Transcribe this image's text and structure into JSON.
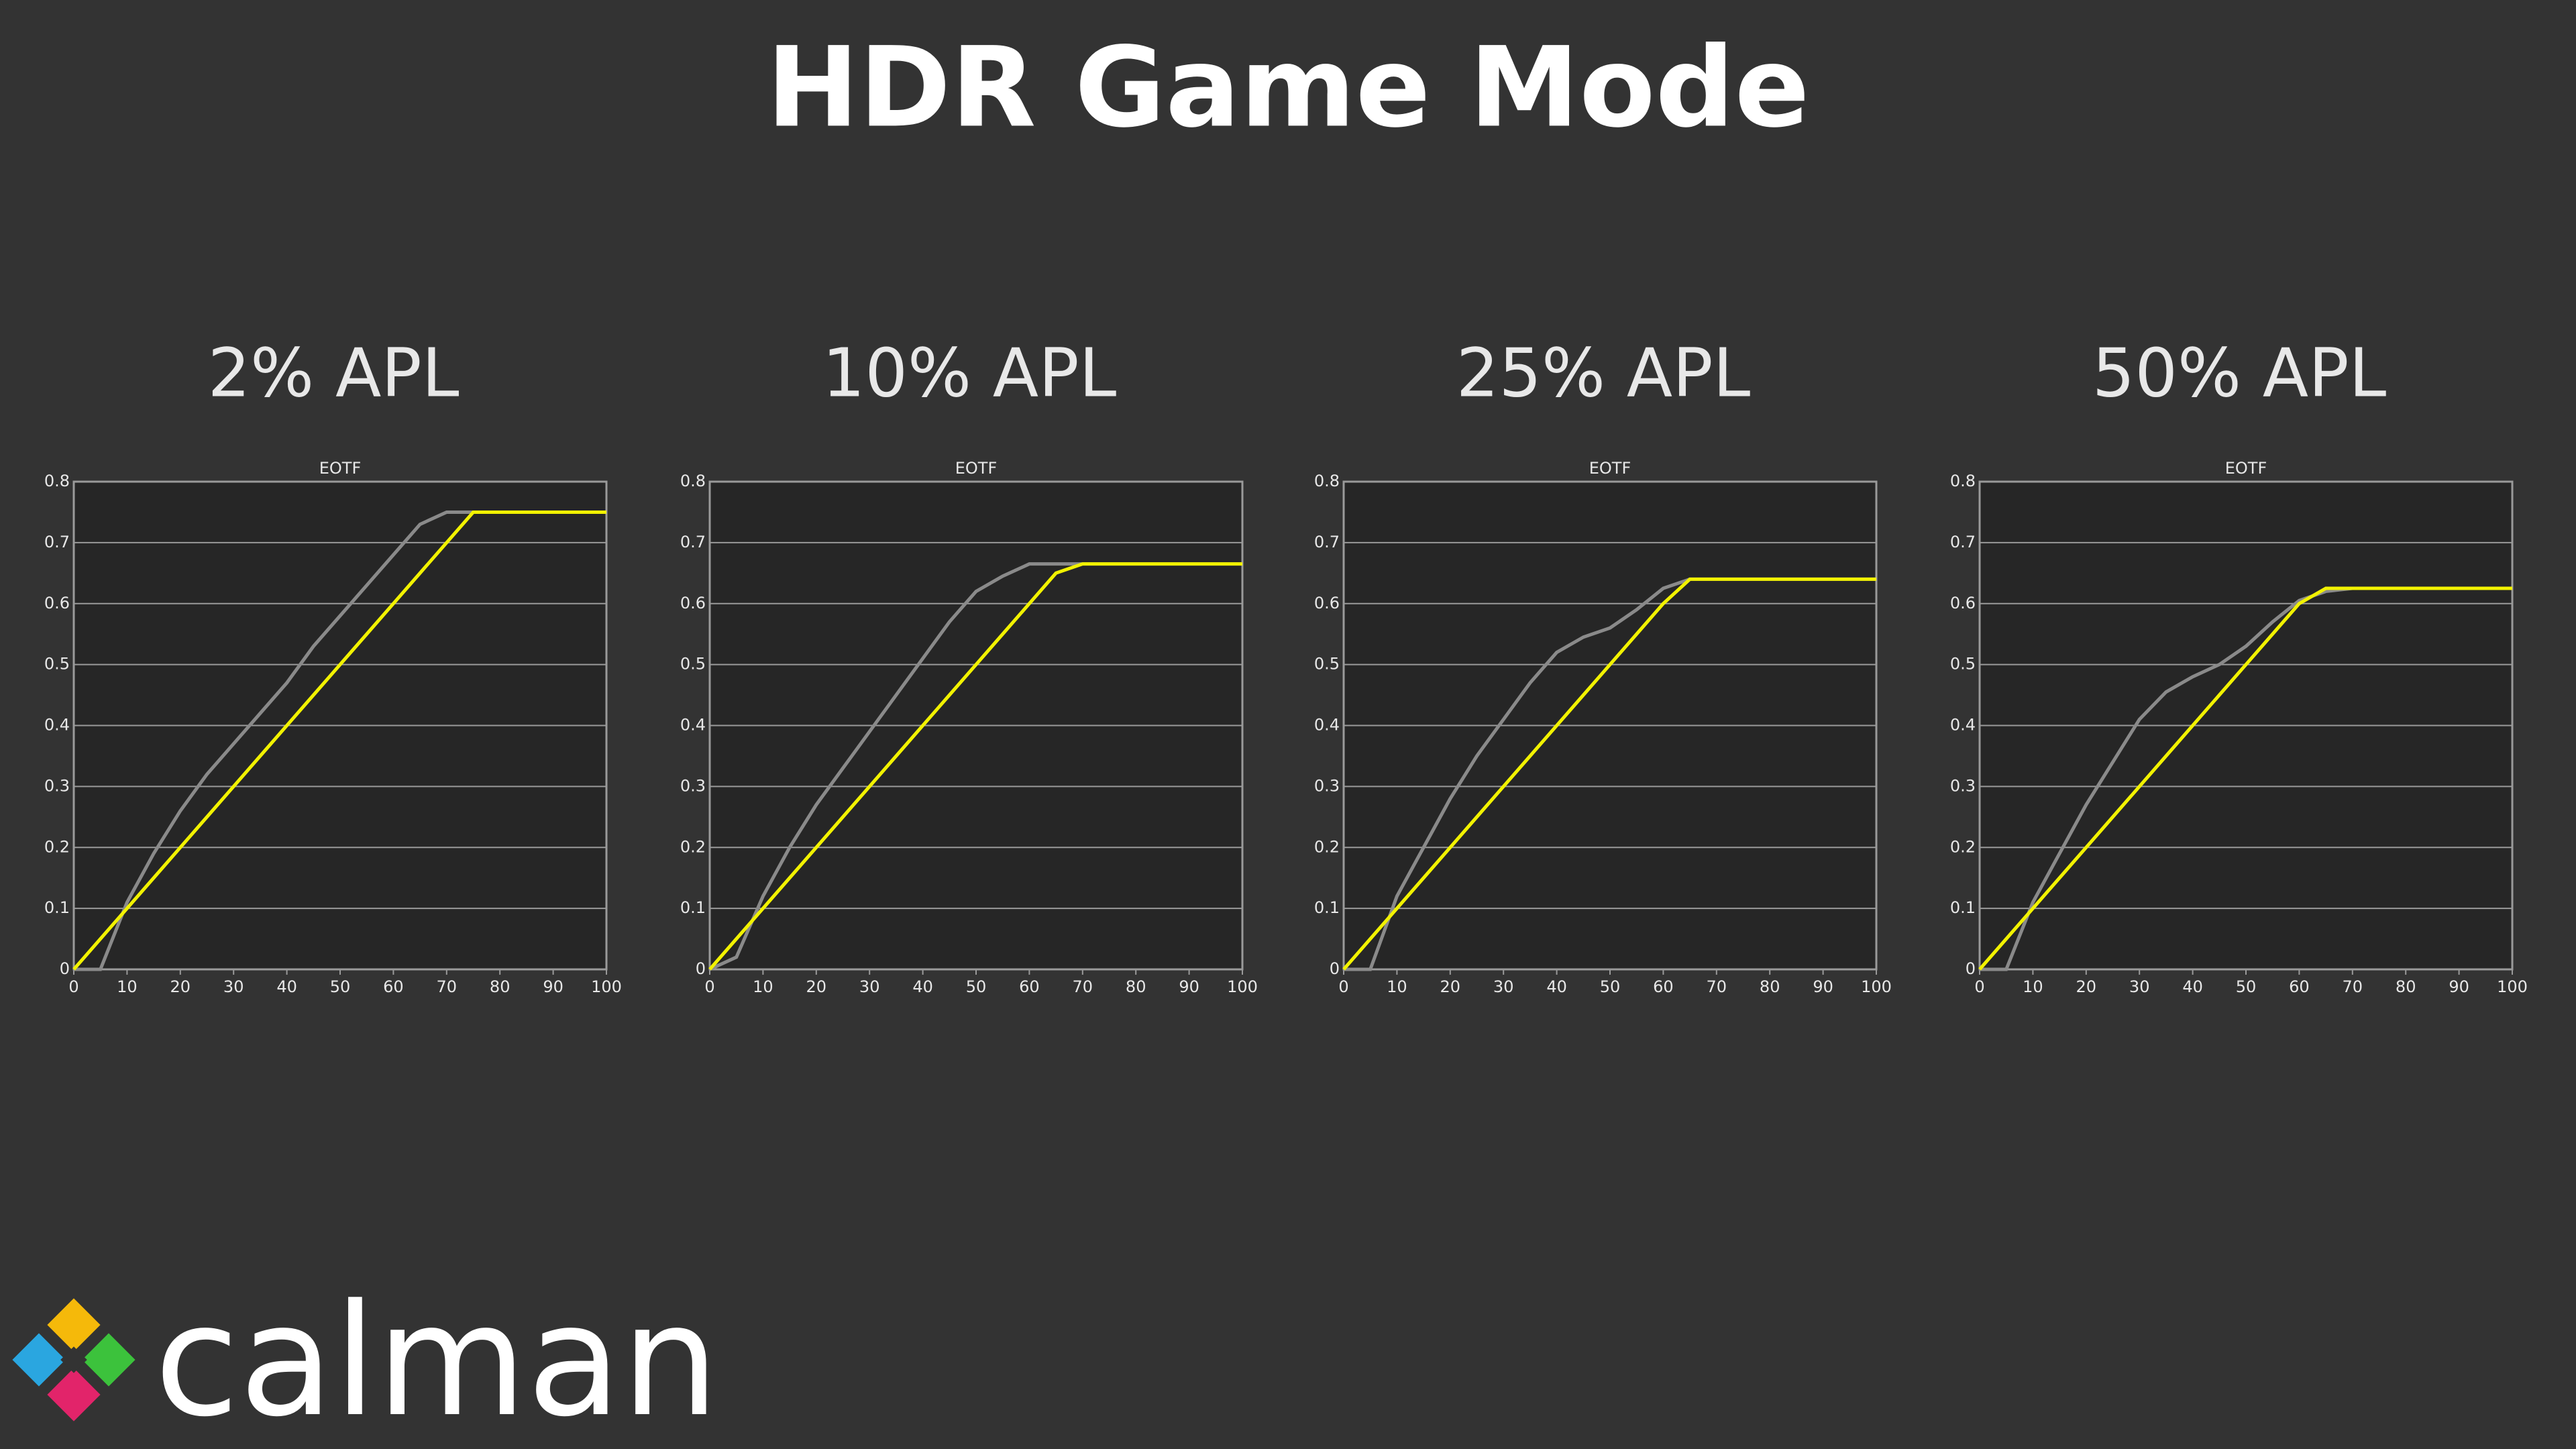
{
  "title": "HDR Game Mode",
  "logo": "calman",
  "chart_data": [
    {
      "type": "line",
      "title": "2% APL",
      "subtitle": "EOTF",
      "x": [
        0,
        5,
        10,
        15,
        20,
        25,
        30,
        35,
        40,
        45,
        50,
        55,
        60,
        65,
        70,
        75,
        80,
        85,
        90,
        95,
        100
      ],
      "series": [
        {
          "color": "#8a8a8a",
          "values": [
            0,
            0,
            0.11,
            0.19,
            0.26,
            0.32,
            0.37,
            0.42,
            0.47,
            0.53,
            0.58,
            0.63,
            0.68,
            0.73,
            0.75,
            0.75,
            0.75,
            0.75,
            0.75,
            0.75,
            0.75
          ]
        },
        {
          "color": "#f2f200",
          "values": [
            0,
            0.05,
            0.1,
            0.15,
            0.2,
            0.25,
            0.3,
            0.35,
            0.4,
            0.45,
            0.5,
            0.55,
            0.6,
            0.65,
            0.7,
            0.75,
            0.75,
            0.75,
            0.75,
            0.75,
            0.75
          ]
        }
      ],
      "xlim": [
        0,
        100
      ],
      "ylim": [
        0,
        0.8
      ],
      "xticks": [
        0,
        10,
        20,
        30,
        40,
        50,
        60,
        70,
        80,
        90,
        100
      ],
      "yticks": [
        0,
        0.1,
        0.2,
        0.3,
        0.4,
        0.5,
        0.6,
        0.7,
        0.8
      ],
      "grid": true
    },
    {
      "type": "line",
      "title": "10% APL",
      "subtitle": "EOTF",
      "x": [
        0,
        5,
        10,
        15,
        20,
        25,
        30,
        35,
        40,
        45,
        50,
        55,
        60,
        65,
        70,
        75,
        80,
        85,
        90,
        95,
        100
      ],
      "series": [
        {
          "color": "#8a8a8a",
          "values": [
            0,
            0.02,
            0.12,
            0.2,
            0.27,
            0.33,
            0.39,
            0.45,
            0.51,
            0.57,
            0.62,
            0.645,
            0.665,
            0.665,
            0.665,
            0.665,
            0.665,
            0.665,
            0.665,
            0.665,
            0.665
          ]
        },
        {
          "color": "#f2f200",
          "values": [
            0,
            0.05,
            0.1,
            0.15,
            0.2,
            0.25,
            0.3,
            0.35,
            0.4,
            0.45,
            0.5,
            0.55,
            0.6,
            0.65,
            0.665,
            0.665,
            0.665,
            0.665,
            0.665,
            0.665,
            0.665
          ]
        }
      ],
      "xlim": [
        0,
        100
      ],
      "ylim": [
        0,
        0.8
      ],
      "xticks": [
        0,
        10,
        20,
        30,
        40,
        50,
        60,
        70,
        80,
        90,
        100
      ],
      "yticks": [
        0,
        0.1,
        0.2,
        0.3,
        0.4,
        0.5,
        0.6,
        0.7,
        0.8
      ],
      "grid": true
    },
    {
      "type": "line",
      "title": "25% APL",
      "subtitle": "EOTF",
      "x": [
        0,
        5,
        10,
        15,
        20,
        25,
        30,
        35,
        40,
        45,
        50,
        55,
        60,
        65,
        70,
        75,
        80,
        85,
        90,
        95,
        100
      ],
      "series": [
        {
          "color": "#8a8a8a",
          "values": [
            0,
            0,
            0.12,
            0.2,
            0.28,
            0.35,
            0.41,
            0.47,
            0.52,
            0.545,
            0.56,
            0.59,
            0.625,
            0.64,
            0.64,
            0.64,
            0.64,
            0.64,
            0.64,
            0.64,
            0.64
          ]
        },
        {
          "color": "#f2f200",
          "values": [
            0,
            0.05,
            0.1,
            0.15,
            0.2,
            0.25,
            0.3,
            0.35,
            0.4,
            0.45,
            0.5,
            0.55,
            0.6,
            0.64,
            0.64,
            0.64,
            0.64,
            0.64,
            0.64,
            0.64,
            0.64
          ]
        }
      ],
      "xlim": [
        0,
        100
      ],
      "ylim": [
        0,
        0.8
      ],
      "xticks": [
        0,
        10,
        20,
        30,
        40,
        50,
        60,
        70,
        80,
        90,
        100
      ],
      "yticks": [
        0,
        0.1,
        0.2,
        0.3,
        0.4,
        0.5,
        0.6,
        0.7,
        0.8
      ],
      "grid": true
    },
    {
      "type": "line",
      "title": "50% APL",
      "subtitle": "EOTF",
      "x": [
        0,
        5,
        10,
        15,
        20,
        25,
        30,
        35,
        40,
        45,
        50,
        55,
        60,
        65,
        70,
        75,
        80,
        85,
        90,
        95,
        100
      ],
      "series": [
        {
          "color": "#8a8a8a",
          "values": [
            0,
            0,
            0.11,
            0.19,
            0.27,
            0.34,
            0.41,
            0.455,
            0.48,
            0.5,
            0.53,
            0.57,
            0.605,
            0.62,
            0.625,
            0.625,
            0.625,
            0.625,
            0.625,
            0.625,
            0.625
          ]
        },
        {
          "color": "#f2f200",
          "values": [
            0,
            0.05,
            0.1,
            0.15,
            0.2,
            0.25,
            0.3,
            0.35,
            0.4,
            0.45,
            0.5,
            0.55,
            0.6,
            0.625,
            0.625,
            0.625,
            0.625,
            0.625,
            0.625,
            0.625,
            0.625
          ]
        }
      ],
      "xlim": [
        0,
        100
      ],
      "ylim": [
        0,
        0.8
      ],
      "xticks": [
        0,
        10,
        20,
        30,
        40,
        50,
        60,
        70,
        80,
        90,
        100
      ],
      "yticks": [
        0,
        0.1,
        0.2,
        0.3,
        0.4,
        0.5,
        0.6,
        0.7,
        0.8
      ],
      "grid": true
    }
  ]
}
